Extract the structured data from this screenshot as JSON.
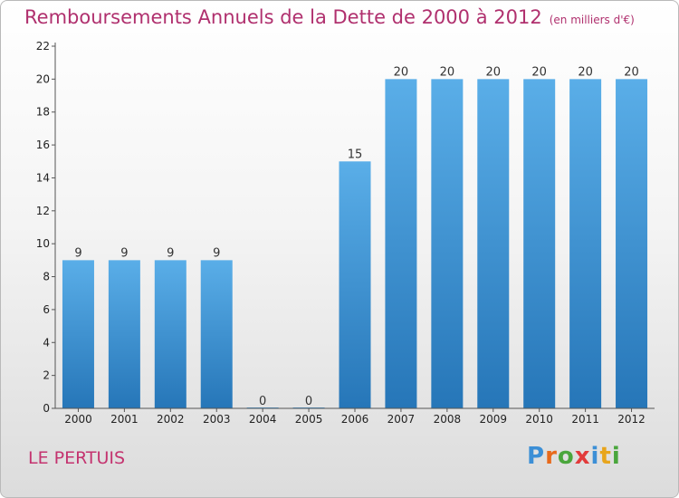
{
  "header": {
    "title": "Remboursements Annuels de la Dette de 2000 à 2012",
    "unit": "(en milliers d'€)"
  },
  "footer": {
    "city": "LE PERTUIS",
    "logo_letters": [
      "P",
      "r",
      "o",
      "x",
      "i",
      "t",
      "i"
    ],
    "logo_colors": [
      "#3c8fd6",
      "#e86a1c",
      "#4aa63c",
      "#e23b3b",
      "#3c8fd6",
      "#e8a51c",
      "#4aa63c"
    ]
  },
  "colors": {
    "title": "#b0306e",
    "bar_top": "#5aaee8",
    "bar_bottom": "#2676b8",
    "axis": "#555555"
  },
  "chart_data": {
    "type": "bar",
    "categories": [
      "2000",
      "2001",
      "2002",
      "2003",
      "2004",
      "2005",
      "2006",
      "2007",
      "2008",
      "2009",
      "2010",
      "2011",
      "2012"
    ],
    "values": [
      9,
      9,
      9,
      9,
      0,
      0,
      15,
      20,
      20,
      20,
      20,
      20,
      20
    ],
    "data_labels": [
      "9",
      "9",
      "9",
      "9",
      "0",
      "0",
      "15",
      "20",
      "20",
      "20",
      "20",
      "20",
      "20"
    ],
    "yticks": [
      "0",
      "2",
      "4",
      "6",
      "8",
      "10",
      "12",
      "14",
      "16",
      "18",
      "20",
      "22"
    ],
    "ylim": [
      0,
      22
    ],
    "title": "Remboursements Annuels de la Dette de 2000 à 2012",
    "xlabel": "",
    "ylabel": "",
    "grid": false,
    "legend": "none"
  }
}
